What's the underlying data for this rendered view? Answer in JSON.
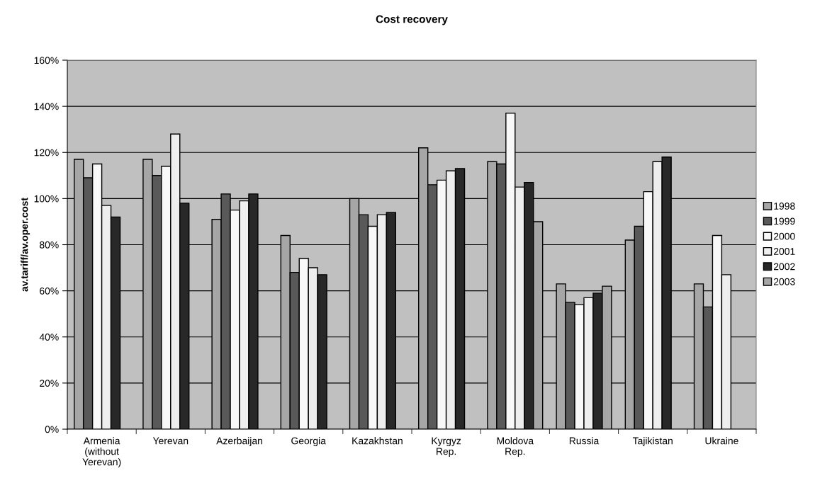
{
  "chart_data": {
    "type": "bar",
    "title": "Cost recovery",
    "ylabel": "av.tariff/av.oper.cost",
    "categories": [
      "Armenia\n(without\nYerevan)",
      "Yerevan",
      "Azerbaijan",
      "Georgia",
      "Kazakhstan",
      "Kyrgyz\nRep.",
      "Moldova\nRep.",
      "Russia",
      "Tajikistan",
      "Ukraine"
    ],
    "series": [
      {
        "name": "1998",
        "color": "#a6a6a6",
        "values": [
          117,
          117,
          91,
          84,
          100,
          122,
          116,
          63,
          82,
          63
        ]
      },
      {
        "name": "1999",
        "color": "#595959",
        "values": [
          109,
          110,
          102,
          68,
          93,
          106,
          115,
          55,
          88,
          53
        ]
      },
      {
        "name": "2000",
        "color": "#f8f8f8",
        "values": [
          115,
          114,
          95,
          74,
          88,
          108,
          137,
          54,
          103,
          84
        ]
      },
      {
        "name": "2001",
        "color": "#eeeeee",
        "values": [
          97,
          128,
          99,
          70,
          93,
          112,
          105,
          57,
          116,
          67
        ]
      },
      {
        "name": "2002",
        "color": "#282828",
        "values": [
          92,
          98,
          102,
          67,
          94,
          113,
          107,
          59,
          118,
          null
        ]
      },
      {
        "name": "2003",
        "color": "#a6a6a6",
        "values": [
          null,
          null,
          null,
          null,
          null,
          null,
          90,
          62,
          null,
          null
        ]
      }
    ],
    "ylim": [
      0,
      160
    ],
    "yticks": [
      {
        "value": 0,
        "label": "0%"
      },
      {
        "value": 20,
        "label": "20%"
      },
      {
        "value": 40,
        "label": "40%"
      },
      {
        "value": 60,
        "label": "60%"
      },
      {
        "value": 80,
        "label": "80%"
      },
      {
        "value": 100,
        "label": "100%"
      },
      {
        "value": 120,
        "label": "120%"
      },
      {
        "value": 140,
        "label": "140%"
      },
      {
        "value": 160,
        "label": "160%"
      }
    ],
    "grid": "y",
    "legend": "right"
  }
}
